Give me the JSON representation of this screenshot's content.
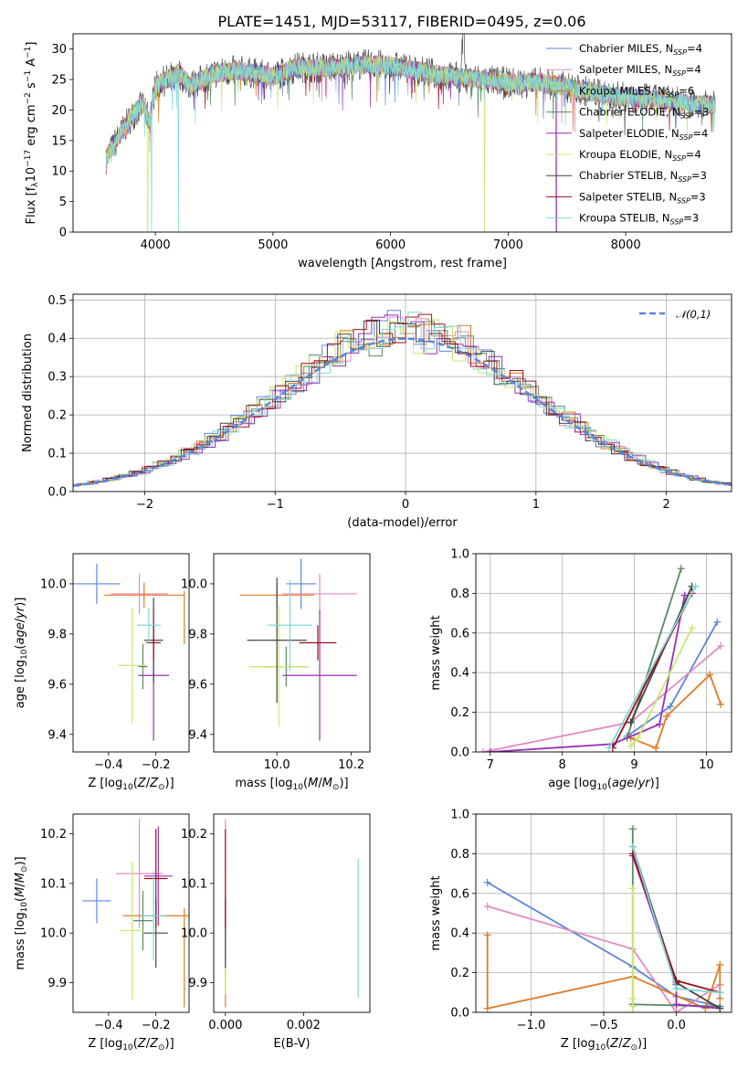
{
  "title": "PLATE=1451, MJD=53117, FIBERID=0495, z=0.06",
  "colors": {
    "Chabrier MILES": "#5b86d6",
    "Salpeter MILES": "#e58ac2",
    "Kroupa MILES": "#e07b22",
    "Chabrier ELODIE": "#5a8a62",
    "Salpeter ELODIE": "#9a2fb8",
    "Kroupa ELODIE": "#c8e86e",
    "Chabrier STELIB": "#444444",
    "Salpeter STELIB": "#9c0f1e",
    "Kroupa STELIB": "#7fd6d6"
  },
  "legend": [
    {
      "key": "Chabrier MILES",
      "text": "Chabrier MILES, N",
      "sub": "SSP",
      "tail": "=4"
    },
    {
      "key": "Salpeter MILES",
      "text": "Salpeter MILES, N",
      "sub": "SSP",
      "tail": "=4"
    },
    {
      "key": "Kroupa MILES",
      "text": "Kroupa MILES, N",
      "sub": "SSP",
      "tail": "=6"
    },
    {
      "key": "Chabrier ELODIE",
      "text": "Chabrier ELODIE, N",
      "sub": "SSP",
      "tail": "=3"
    },
    {
      "key": "Salpeter ELODIE",
      "text": "Salpeter ELODIE, N",
      "sub": "SSP",
      "tail": "=4"
    },
    {
      "key": "Kroupa ELODIE",
      "text": "Kroupa ELODIE, N",
      "sub": "SSP",
      "tail": "=4"
    },
    {
      "key": "Chabrier STELIB",
      "text": "Chabrier STELIB, N",
      "sub": "SSP",
      "tail": "=3"
    },
    {
      "key": "Salpeter STELIB",
      "text": "Salpeter STELIB, N",
      "sub": "SSP",
      "tail": "=3"
    },
    {
      "key": "Kroupa STELIB",
      "text": "Kroupa STELIB, N",
      "sub": "SSP",
      "tail": "=3"
    }
  ],
  "chart_data": [
    {
      "id": "spectrum",
      "type": "line",
      "xlabel": "wavelength [Angstrom, rest frame]",
      "ylabel": "Flux [f_λ 10^-17 erg cm^-2 s^-1 A^-1]",
      "xlim": [
        3300,
        8900
      ],
      "ylim": [
        0,
        32.5
      ],
      "xticks": [
        4000,
        5000,
        6000,
        7000,
        8000
      ],
      "yticks": [
        0,
        5,
        10,
        15,
        20,
        25,
        30
      ],
      "continuum": [
        [
          3580,
          12
        ],
        [
          3700,
          16
        ],
        [
          3800,
          19
        ],
        [
          3900,
          21
        ],
        [
          3950,
          18
        ],
        [
          4000,
          24
        ],
        [
          4100,
          25
        ],
        [
          4200,
          26
        ],
        [
          4300,
          24
        ],
        [
          4500,
          26
        ],
        [
          4700,
          26.5
        ],
        [
          5000,
          25.5
        ],
        [
          5200,
          27
        ],
        [
          5500,
          27
        ],
        [
          5800,
          27.5
        ],
        [
          6000,
          27.3
        ],
        [
          6200,
          26.5
        ],
        [
          6500,
          25.5
        ],
        [
          6800,
          25
        ],
        [
          7000,
          24.5
        ],
        [
          7300,
          24.5
        ],
        [
          7600,
          23.3
        ],
        [
          7900,
          22.3
        ],
        [
          8200,
          21.8
        ],
        [
          8500,
          21.2
        ],
        [
          8760,
          20.8
        ]
      ],
      "absorption_lines": [
        {
          "wavelength": 3934,
          "model": "Kroupa ELODIE"
        },
        {
          "wavelength": 3968,
          "model": "Kroupa STELIB"
        },
        {
          "wavelength": 4195,
          "model": "Kroupa STELIB"
        },
        {
          "wavelength": 6800,
          "model": "Kroupa ELODIE"
        },
        {
          "wavelength": 7410,
          "model": "Salpeter ELODIE"
        }
      ]
    },
    {
      "id": "residuals",
      "type": "histogram",
      "xlabel": "(data-model)/error",
      "ylabel": "Normed distribution",
      "xlim": [
        -2.55,
        2.5
      ],
      "ylim": [
        0,
        0.515
      ],
      "xticks": [
        -2,
        -1,
        0,
        1,
        2
      ],
      "yticks": [
        0.0,
        0.1,
        0.2,
        0.3,
        0.4,
        0.5
      ],
      "reference": {
        "name": "𝒩(0,1)",
        "mean": 0,
        "sigma": 1
      }
    },
    {
      "id": "age-vs-Z",
      "type": "errorbar",
      "xlabel": "Z [log10(Z/Z⊙)]",
      "ylabel": "age [log10(age/yr)]",
      "xlim": [
        -0.55,
        -0.06
      ],
      "ylim": [
        9.33,
        10.12
      ],
      "xticks": [
        -0.4,
        -0.2
      ],
      "yticks": [
        9.4,
        9.6,
        9.8,
        10.0
      ],
      "points": [
        {
          "model": "Chabrier MILES",
          "x": -0.45,
          "xerr": 0.1,
          "y": 10.0,
          "yerr": 0.08
        },
        {
          "model": "Salpeter MILES",
          "x": -0.27,
          "xerr": 0.12,
          "y": 9.96,
          "yerr": 0.08
        },
        {
          "model": "Kroupa MILES",
          "x": -0.25,
          "xerr": 0.17,
          "y": 9.955,
          "yerr": 0.05
        },
        {
          "model": "Kroupa MILES",
          "x": -0.08,
          "xerr": 0.0,
          "y": 9.865,
          "yerr": 0.105
        },
        {
          "model": "Chabrier ELODIE",
          "x": -0.255,
          "xerr": 0.02,
          "y": 9.67,
          "yerr": 0.09
        },
        {
          "model": "Salpeter ELODIE",
          "x": -0.21,
          "xerr": 0.065,
          "y": 9.635,
          "yerr": 0.26
        },
        {
          "model": "Kroupa ELODIE",
          "x": -0.3,
          "xerr": 0.06,
          "y": 9.675,
          "yerr": 0.23
        },
        {
          "model": "Chabrier STELIB",
          "x": -0.21,
          "xerr": 0.04,
          "y": 9.775,
          "yerr": 0.17
        },
        {
          "model": "Salpeter STELIB",
          "x": -0.21,
          "xerr": 0.03,
          "y": 9.765,
          "yerr": 0.07
        },
        {
          "model": "Kroupa STELIB",
          "x": -0.23,
          "xerr": 0.05,
          "y": 9.835,
          "yerr": 0.07
        }
      ]
    },
    {
      "id": "age-vs-mass",
      "type": "errorbar",
      "xlabel": "mass [log10(M/M⊙)]",
      "ylabel": "",
      "xlim": [
        9.83,
        10.25
      ],
      "ylim": [
        9.33,
        10.12
      ],
      "xticks": [
        10.0,
        10.2
      ],
      "yticks": [
        9.4,
        9.6,
        9.8,
        10.0
      ],
      "points": [
        {
          "model": "Chabrier MILES",
          "x": 10.065,
          "xerr": 0.04,
          "y": 10.0,
          "yerr": 0.1
        },
        {
          "model": "Salpeter MILES",
          "x": 10.115,
          "xerr": 0.1,
          "y": 9.96,
          "yerr": 0.08
        },
        {
          "model": "Kroupa MILES",
          "x": 10.0,
          "xerr": 0.1,
          "y": 9.955,
          "yerr": 0.05
        },
        {
          "model": "Chabrier ELODIE",
          "x": 10.025,
          "xerr": 0.06,
          "y": 9.67,
          "yerr": 0.08
        },
        {
          "model": "Salpeter ELODIE",
          "x": 10.115,
          "xerr": 0.1,
          "y": 9.635,
          "yerr": 0.26
        },
        {
          "model": "Kroupa ELODIE",
          "x": 10.005,
          "xerr": 0.08,
          "y": 9.67,
          "yerr": 0.24
        },
        {
          "model": "Chabrier STELIB",
          "x": 10.0,
          "xerr": 0.08,
          "y": 9.775,
          "yerr": 0.25
        },
        {
          "model": "Salpeter STELIB",
          "x": 10.11,
          "xerr": 0.05,
          "y": 9.765,
          "yerr": 0.07
        },
        {
          "model": "Kroupa STELIB",
          "x": 10.035,
          "xerr": 0.06,
          "y": 9.835,
          "yerr": 0.18
        }
      ]
    },
    {
      "id": "weight-vs-age",
      "type": "line",
      "xlabel": "age [log10(age/yr)]",
      "ylabel": "mass weight",
      "xlim": [
        6.8,
        10.35
      ],
      "ylim": [
        0,
        1.0
      ],
      "xticks": [
        7,
        8,
        9,
        10
      ],
      "yticks": [
        0.0,
        0.2,
        0.4,
        0.6,
        0.8,
        1.0
      ],
      "series": [
        {
          "model": "Chabrier MILES",
          "x": [
            8.9,
            9.5,
            10.15
          ],
          "y": [
            0.08,
            0.23,
            0.655
          ]
        },
        {
          "model": "Salpeter MILES",
          "x": [
            6.9,
            8.95,
            10.2
          ],
          "y": [
            0.0,
            0.15,
            0.535
          ]
        },
        {
          "model": "Kroupa MILES",
          "x": [
            8.95,
            9.3,
            9.45,
            10.05,
            10.2
          ],
          "y": [
            0.07,
            0.02,
            0.18,
            0.39,
            0.24
          ]
        },
        {
          "model": "Chabrier ELODIE",
          "x": [
            8.9,
            9.65
          ],
          "y": [
            0.07,
            0.925
          ]
        },
        {
          "model": "Salpeter ELODIE",
          "x": [
            7.0,
            8.7,
            9.35,
            9.7
          ],
          "y": [
            0.0,
            0.04,
            0.14,
            0.79
          ]
        },
        {
          "model": "Kroupa ELODIE",
          "x": [
            8.95,
            9.05,
            9.8
          ],
          "y": [
            0.03,
            0.07,
            0.625
          ]
        },
        {
          "model": "Chabrier STELIB",
          "x": [
            8.95,
            9.8
          ],
          "y": [
            0.15,
            0.835
          ]
        },
        {
          "model": "Salpeter STELIB",
          "x": [
            8.7,
            9.8
          ],
          "y": [
            0.02,
            0.8
          ]
        },
        {
          "model": "Kroupa STELIB",
          "x": [
            8.65,
            9.85
          ],
          "y": [
            0.02,
            0.835
          ]
        }
      ]
    },
    {
      "id": "mass-vs-Z",
      "type": "errorbar",
      "xlabel": "Z [log10(Z/Z⊙)]",
      "ylabel": "mass [log10(M/M⊙)]",
      "xlim": [
        -0.55,
        -0.06
      ],
      "ylim": [
        9.84,
        10.24
      ],
      "xticks": [
        -0.4,
        -0.2
      ],
      "yticks": [
        9.9,
        10.0,
        10.1,
        10.2
      ],
      "points": [
        {
          "model": "Chabrier MILES",
          "x": -0.45,
          "xerr": 0.06,
          "y": 10.065,
          "yerr": 0.045
        },
        {
          "model": "Salpeter MILES",
          "x": -0.27,
          "xerr": 0.1,
          "y": 10.12,
          "yerr": 0.11
        },
        {
          "model": "Kroupa MILES",
          "x": -0.2,
          "xerr": 0.14,
          "y": 10.035,
          "yerr": 0.0
        },
        {
          "model": "Kroupa MILES",
          "x": -0.08,
          "xerr": 0.0,
          "y": 9.95,
          "yerr": 0.1
        },
        {
          "model": "Chabrier ELODIE",
          "x": -0.255,
          "xerr": 0.04,
          "y": 10.025,
          "yerr": 0.06
        },
        {
          "model": "Salpeter ELODIE",
          "x": -0.19,
          "xerr": 0.06,
          "y": 10.115,
          "yerr": 0.1
        },
        {
          "model": "Kroupa ELODIE",
          "x": -0.3,
          "xerr": 0.05,
          "y": 10.005,
          "yerr": 0.14
        },
        {
          "model": "Chabrier STELIB",
          "x": -0.2,
          "xerr": 0.05,
          "y": 10.0,
          "yerr": 0.07
        },
        {
          "model": "Salpeter STELIB",
          "x": -0.2,
          "xerr": 0.05,
          "y": 10.11,
          "yerr": 0.1
        },
        {
          "model": "Kroupa STELIB",
          "x": -0.21,
          "xerr": 0.05,
          "y": 10.035,
          "yerr": 0.09
        }
      ]
    },
    {
      "id": "mass-vs-ebv",
      "type": "errorbar",
      "xlabel": "E(B-V)",
      "ylabel": "",
      "xlim": [
        -0.0003,
        0.0037
      ],
      "ylim": [
        9.84,
        10.24
      ],
      "xticks": [
        0.0,
        0.002
      ],
      "xtick_labels": [
        "0.000",
        "0.002"
      ],
      "yticks": [
        9.9,
        10.0,
        10.1,
        10.2
      ],
      "points": [
        {
          "model": "Salpeter MILES",
          "x": 0.0,
          "xerr": 0,
          "y": 10.12,
          "yerr": 0.11
        },
        {
          "model": "Kroupa MILES",
          "x": 0.0,
          "xerr": 0,
          "y": 9.95,
          "yerr": 0.1
        },
        {
          "model": "Kroupa ELODIE",
          "x": 0.0,
          "xerr": 0,
          "y": 10.005,
          "yerr": 0.13
        },
        {
          "model": "Chabrier STELIB",
          "x": 0.0,
          "xerr": 0,
          "y": 10.0,
          "yerr": 0.07
        },
        {
          "model": "Salpeter STELIB",
          "x": 0.0,
          "xerr": 0,
          "y": 10.11,
          "yerr": 0.1
        },
        {
          "model": "Kroupa STELIB",
          "x": 0.0034,
          "xerr": 0,
          "y": 10.01,
          "yerr": 0.14
        }
      ]
    },
    {
      "id": "weight-vs-Z",
      "type": "line",
      "xlabel": "Z [log10(Z/Z⊙)]",
      "ylabel": "mass weight",
      "xlim": [
        -1.38,
        0.38
      ],
      "ylim": [
        0,
        1.0
      ],
      "xticks": [
        -1.0,
        -0.5,
        0.0
      ],
      "yticks": [
        0.0,
        0.2,
        0.4,
        0.6,
        0.8,
        1.0
      ],
      "series": [
        {
          "model": "Chabrier MILES",
          "x": [
            -1.3,
            -0.3,
            0.0,
            0.3
          ],
          "y": [
            0.655,
            0.23,
            0.08,
            0.03
          ]
        },
        {
          "model": "Salpeter MILES",
          "x": [
            -1.3,
            -0.3,
            0.0,
            0.3
          ],
          "y": [
            0.535,
            0.32,
            0.0,
            0.14
          ]
        },
        {
          "model": "Kroupa MILES",
          "x": [
            -1.3,
            -1.3,
            -0.3,
            0.2,
            0.3,
            0.3
          ],
          "y": [
            0.39,
            0.02,
            0.18,
            0.02,
            0.24,
            0.07
          ]
        },
        {
          "model": "Chabrier ELODIE",
          "x": [
            -0.3,
            -0.3,
            0.3
          ],
          "y": [
            0.925,
            0.04,
            0.03
          ]
        },
        {
          "model": "Salpeter ELODIE",
          "x": [
            -0.3,
            0.0,
            0.0,
            0.3
          ],
          "y": [
            0.79,
            0.14,
            0.04,
            0.02
          ]
        },
        {
          "model": "Kroupa ELODIE",
          "x": [
            -0.3,
            -0.3,
            -0.3,
            -0.3
          ],
          "y": [
            0.625,
            0.03,
            0.07,
            0.0
          ]
        },
        {
          "model": "Chabrier STELIB",
          "x": [
            -0.3,
            0.0,
            0.3
          ],
          "y": [
            0.835,
            0.15,
            0.02
          ]
        },
        {
          "model": "Salpeter STELIB",
          "x": [
            -0.3,
            0.0,
            0.3
          ],
          "y": [
            0.8,
            0.16,
            0.1
          ]
        },
        {
          "model": "Kroupa STELIB",
          "x": [
            -0.3,
            0.0,
            0.3
          ],
          "y": [
            0.835,
            0.12,
            0.1
          ]
        }
      ]
    }
  ]
}
